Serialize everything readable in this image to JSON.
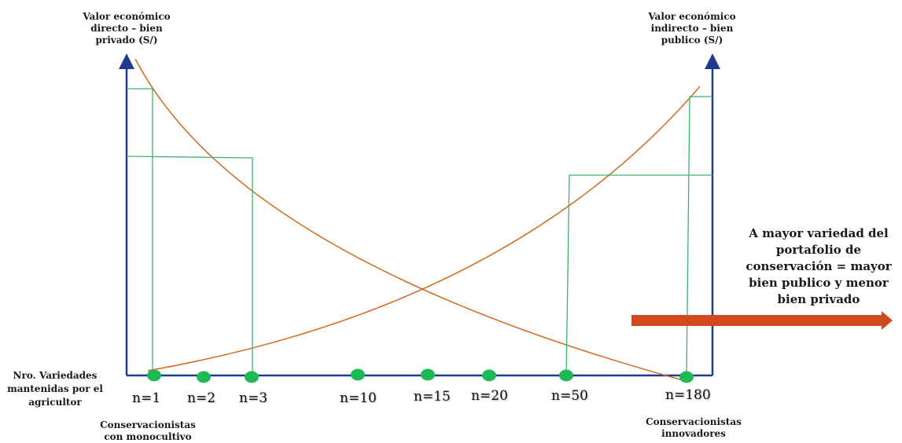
{
  "labels": {
    "left_axis": "Valor económico directo – bien privado (S/)",
    "right_axis": "Valor económico indirecto – bien publico (S/)",
    "x_axis": "Nro. Variedades mantenidas por el agricultor",
    "left_group": "Conservacionistas con monocultivo",
    "right_group": "Conservacionistas innovadores",
    "note": "A mayor variedad del portafolio de conservación = mayor bien publico y menor bien privado"
  },
  "points": [
    {
      "label": "n=1"
    },
    {
      "label": "n=2"
    },
    {
      "label": "n=3"
    },
    {
      "label": "n=10"
    },
    {
      "label": "n=15"
    },
    {
      "label": "n=20"
    },
    {
      "label": "n=50"
    },
    {
      "label": "n=180"
    }
  ],
  "colors": {
    "axis": "#1f3b8f",
    "curve": "#d2691e",
    "guide": "#3cb371",
    "dot": "#1db954",
    "arrow": "#d04a1e"
  }
}
